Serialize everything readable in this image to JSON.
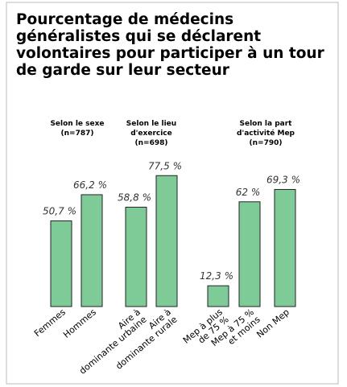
{
  "chart_data": [
    {
      "type": "bar",
      "title": "Pourcentage de médecins généralistes qui se déclarent volontaires pour participer à un tour de garde sur leur secteur",
      "group_title": [
        "Selon le sexe",
        "(n=787)"
      ],
      "categories": [
        [
          "Femmes"
        ],
        [
          "Hommes"
        ]
      ],
      "values": [
        50.7,
        66.2
      ],
      "value_labels": [
        "50,7 %",
        "66,2 %"
      ],
      "color": "#7ecb98"
    },
    {
      "type": "bar",
      "group_title": [
        "Selon le lieu",
        "d'exercice",
        "(n=698)"
      ],
      "categories": [
        [
          "Aire à",
          "dominante urbaine"
        ],
        [
          "Aire à",
          "dominante rurale"
        ]
      ],
      "values": [
        58.8,
        77.5
      ],
      "value_labels": [
        "58,8 %",
        "77,5 %"
      ],
      "color": "#7ecb98"
    },
    {
      "type": "bar",
      "group_title": [
        "Selon la part",
        "d'activité Mep",
        "(n=790)"
      ],
      "categories": [
        [
          "Mep à plus",
          "de 75 %"
        ],
        [
          "Mep à 75 %",
          "et moins"
        ],
        [
          "Non Mep"
        ]
      ],
      "values": [
        12.3,
        62,
        69.3
      ],
      "value_labels": [
        "12,3 %",
        "62 %",
        "69,3 %"
      ],
      "color": "#7ecb98"
    }
  ]
}
